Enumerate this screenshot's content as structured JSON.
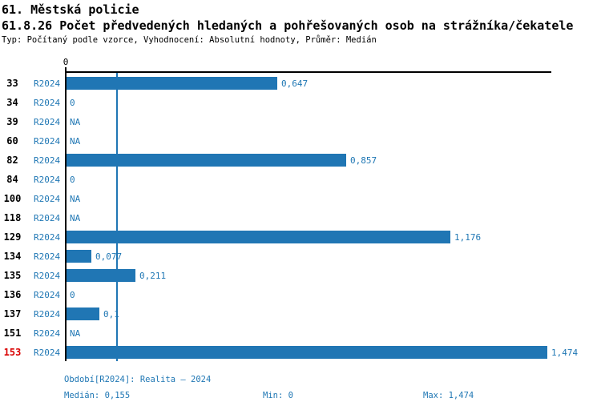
{
  "header": {
    "title": "61. Městská policie",
    "subtitle": "61.8.26 Počet předvedených hledaných a pohřešovaných osob na strážníka/čekatele",
    "meta": "Typ: Počítaný podle vzorce, Vyhodnocení: Absolutní hodnoty, Průměr: Medián"
  },
  "chart_data": {
    "type": "bar",
    "orientation": "horizontal",
    "title": "61.8.26 Počet předvedených hledaných a pohřešovaných osob na strážníka/čekatele",
    "xlim": [
      0,
      1.48
    ],
    "x_tick_labels": [
      "0"
    ],
    "grid": false,
    "legend_position": "none",
    "median_line_value": 0.155,
    "series_name": "R2024",
    "colors": {
      "bar": "#2076b4",
      "median_line": "#2076b4",
      "blue_text": "#1f77b4",
      "highlight_row": "#d90000",
      "axis": "#000000"
    },
    "categories": [
      "33",
      "34",
      "39",
      "60",
      "82",
      "84",
      "100",
      "118",
      "129",
      "134",
      "135",
      "136",
      "137",
      "151",
      "153"
    ],
    "values": [
      0.647,
      0,
      null,
      null,
      0.857,
      0,
      null,
      null,
      1.176,
      0.077,
      0.211,
      0,
      0.1,
      null,
      1.474
    ],
    "rows": [
      {
        "id": "33",
        "period": "R2024",
        "value": 0.647,
        "display": "0,647",
        "highlight": false
      },
      {
        "id": "34",
        "period": "R2024",
        "value": 0,
        "display": "0",
        "highlight": false
      },
      {
        "id": "39",
        "period": "R2024",
        "value": null,
        "display": "NA",
        "highlight": false
      },
      {
        "id": "60",
        "period": "R2024",
        "value": null,
        "display": "NA",
        "highlight": false
      },
      {
        "id": "82",
        "period": "R2024",
        "value": 0.857,
        "display": "0,857",
        "highlight": false
      },
      {
        "id": "84",
        "period": "R2024",
        "value": 0,
        "display": "0",
        "highlight": false
      },
      {
        "id": "100",
        "period": "R2024",
        "value": null,
        "display": "NA",
        "highlight": false
      },
      {
        "id": "118",
        "period": "R2024",
        "value": null,
        "display": "NA",
        "highlight": false
      },
      {
        "id": "129",
        "period": "R2024",
        "value": 1.176,
        "display": "1,176",
        "highlight": false
      },
      {
        "id": "134",
        "period": "R2024",
        "value": 0.077,
        "display": "0,077",
        "highlight": false
      },
      {
        "id": "135",
        "period": "R2024",
        "value": 0.211,
        "display": "0,211",
        "highlight": false
      },
      {
        "id": "136",
        "period": "R2024",
        "value": 0,
        "display": "0",
        "highlight": false
      },
      {
        "id": "137",
        "period": "R2024",
        "value": 0.1,
        "display": "0,1",
        "highlight": false
      },
      {
        "id": "151",
        "period": "R2024",
        "value": null,
        "display": "NA",
        "highlight": false
      },
      {
        "id": "153",
        "period": "R2024",
        "value": 1.474,
        "display": "1,474",
        "highlight": true
      }
    ]
  },
  "footer": {
    "period_info": "Období[R2024]: Realita – 2024",
    "median": "Medián: 0,155",
    "min": "Min: 0",
    "max": "Max: 1,474"
  }
}
